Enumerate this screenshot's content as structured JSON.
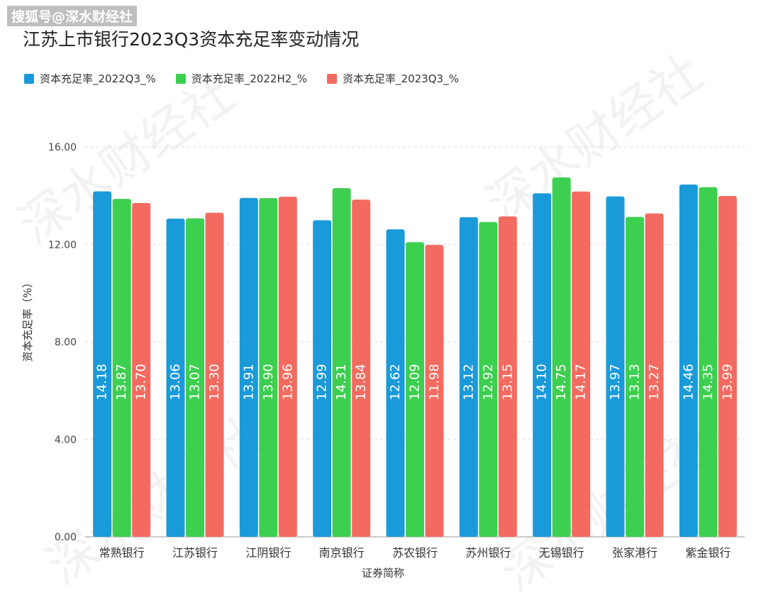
{
  "watermark": "搜狐号@深水财经社",
  "background_watermark": "深水财经社",
  "chart_data": {
    "type": "bar",
    "title": "江苏上市银行2023Q3资本充足率变动情况",
    "xlabel": "证券简称",
    "ylabel": "资本充足率（%）",
    "ylim": [
      0,
      16
    ],
    "yticks": [
      "0.00",
      "4.00",
      "8.00",
      "12.00",
      "16.00"
    ],
    "grid": true,
    "legend_position": "top-left",
    "categories": [
      "常熟银行",
      "江苏银行",
      "江阴银行",
      "南京银行",
      "苏农银行",
      "苏州银行",
      "无锡银行",
      "张家港行",
      "紫金银行"
    ],
    "series": [
      {
        "name": "资本充足率_2022Q3_%",
        "color": "#1a9ad9",
        "values": [
          14.18,
          13.06,
          13.91,
          12.99,
          12.62,
          13.12,
          14.1,
          13.97,
          14.46
        ],
        "labels": [
          "14.18",
          "13.06",
          "13.91",
          "12.99",
          "12.62",
          "13.12",
          "14.10",
          "13.97",
          "14.46"
        ]
      },
      {
        "name": "资本充足率_2022H2_%",
        "color": "#3dcf4f",
        "values": [
          13.87,
          13.07,
          13.9,
          14.31,
          12.09,
          12.92,
          14.75,
          13.13,
          14.35
        ],
        "labels": [
          "13.87",
          "13.07",
          "13.90",
          "14.31",
          "12.09",
          "12.92",
          "14.75",
          "13.13",
          "14.35"
        ]
      },
      {
        "name": "资本充足率_2023Q3_%",
        "color": "#f36b60",
        "values": [
          13.7,
          13.3,
          13.96,
          13.84,
          11.98,
          13.15,
          14.17,
          13.27,
          13.99
        ],
        "labels": [
          "13.70",
          "13.30",
          "13.96",
          "13.84",
          "11.98",
          "13.15",
          "14.17",
          "13.27",
          "13.99"
        ]
      }
    ]
  }
}
